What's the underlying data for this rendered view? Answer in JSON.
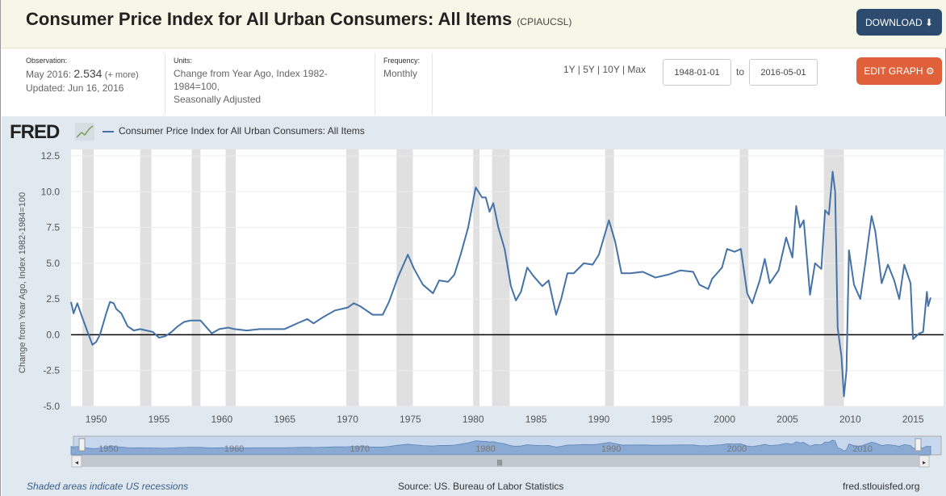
{
  "header": {
    "title": "Consumer Price Index for All Urban Consumers: All Items",
    "series_id": "(CPIAUCSL)",
    "download_label": "DOWNLOAD",
    "edit_label": "EDIT GRAPH"
  },
  "meta": {
    "observation_label": "Observation:",
    "observation_date": "May 2016:",
    "observation_value": "2.534",
    "more": "(+ more)",
    "updated": "Updated: Jun 16, 2016",
    "units_label": "Units:",
    "units_line1": "Change from Year Ago, Index 1982-",
    "units_line2": "1984=100,",
    "units_line3": "Seasonally Adjusted",
    "frequency_label": "Frequency:",
    "frequency": "Monthly"
  },
  "range": {
    "presets": "1Y | 5Y | 10Y | Max",
    "start": "1948-01-01",
    "to": "to",
    "end": "2016-05-01"
  },
  "logo": "FRED",
  "footer": {
    "recessions": "Shaded areas indicate US recessions",
    "source": "Source: US. Bureau of Labor Statistics",
    "site": "fred.stlouisfed.org"
  },
  "colors": {
    "line": "#4572a7",
    "recession": "#e0e0e0",
    "navigator": "#8aaad3"
  },
  "chart_data": {
    "type": "line",
    "legend": "Consumer Price Index for All Urban Consumers: All Items",
    "ylabel": "Change from Year Ago, Index 1982-1984=100",
    "ylim": [
      -5,
      12.5
    ],
    "xlim": [
      1948.0,
      2016.4
    ],
    "yticks": [
      "12.5",
      "10.0",
      "7.5",
      "5.0",
      "2.5",
      "0.0",
      "-2.5",
      "-5.0"
    ],
    "ytick_values": [
      12.5,
      10,
      7.5,
      5,
      2.5,
      0,
      -2.5,
      -5
    ],
    "xticks": [
      "1950",
      "1955",
      "1960",
      "1965",
      "1970",
      "1975",
      "1980",
      "1985",
      "1990",
      "1995",
      "2000",
      "2005",
      "2010",
      "2015"
    ],
    "nav_ticks": [
      "1950",
      "1960",
      "1970",
      "1980",
      "1990",
      "2000",
      "2010"
    ],
    "recessions": [
      [
        1948.9,
        1949.8
      ],
      [
        1953.5,
        1954.4
      ],
      [
        1957.6,
        1958.3
      ],
      [
        1960.3,
        1961.1
      ],
      [
        1969.9,
        1970.9
      ],
      [
        1973.9,
        1975.2
      ],
      [
        1980.0,
        1980.5
      ],
      [
        1981.5,
        1982.9
      ],
      [
        1990.5,
        1991.2
      ],
      [
        2001.2,
        2001.9
      ],
      [
        2007.9,
        2009.5
      ]
    ],
    "series": [
      {
        "name": "CPIAUCSL",
        "points": [
          [
            1948.0,
            2.3
          ],
          [
            1948.2,
            1.5
          ],
          [
            1948.5,
            2.2
          ],
          [
            1948.9,
            1.2
          ],
          [
            1949.4,
            0.0
          ],
          [
            1949.7,
            -0.7
          ],
          [
            1950.0,
            -0.5
          ],
          [
            1950.3,
            0.0
          ],
          [
            1950.8,
            1.5
          ],
          [
            1951.1,
            2.3
          ],
          [
            1951.4,
            2.2
          ],
          [
            1951.6,
            1.8
          ],
          [
            1952.0,
            1.5
          ],
          [
            1952.5,
            0.6
          ],
          [
            1953.0,
            0.3
          ],
          [
            1953.5,
            0.4
          ],
          [
            1954.0,
            0.3
          ],
          [
            1954.5,
            0.2
          ],
          [
            1955.0,
            -0.2
          ],
          [
            1955.5,
            -0.1
          ],
          [
            1956.0,
            0.2
          ],
          [
            1956.5,
            0.6
          ],
          [
            1957.0,
            0.9
          ],
          [
            1957.5,
            1.0
          ],
          [
            1958.0,
            1.0
          ],
          [
            1958.3,
            1.0
          ],
          [
            1958.8,
            0.5
          ],
          [
            1959.2,
            0.1
          ],
          [
            1959.8,
            0.4
          ],
          [
            1960.5,
            0.5
          ],
          [
            1961.0,
            0.4
          ],
          [
            1962.0,
            0.3
          ],
          [
            1963.0,
            0.4
          ],
          [
            1964.0,
            0.4
          ],
          [
            1965.0,
            0.4
          ],
          [
            1966.0,
            0.8
          ],
          [
            1966.8,
            1.1
          ],
          [
            1967.3,
            0.8
          ],
          [
            1968.0,
            1.2
          ],
          [
            1969.0,
            1.7
          ],
          [
            1970.0,
            1.9
          ],
          [
            1970.5,
            2.2
          ],
          [
            1971.0,
            2.0
          ],
          [
            1972.0,
            1.4
          ],
          [
            1972.8,
            1.4
          ],
          [
            1973.3,
            2.3
          ],
          [
            1974.0,
            4.0
          ],
          [
            1974.8,
            5.6
          ],
          [
            1975.3,
            4.6
          ],
          [
            1976.0,
            3.5
          ],
          [
            1976.8,
            2.9
          ],
          [
            1977.3,
            3.8
          ],
          [
            1978.0,
            3.7
          ],
          [
            1978.5,
            4.2
          ],
          [
            1979.0,
            5.6
          ],
          [
            1979.6,
            7.5
          ],
          [
            1980.2,
            10.3
          ],
          [
            1980.7,
            9.6
          ],
          [
            1981.0,
            9.6
          ],
          [
            1981.3,
            8.6
          ],
          [
            1981.6,
            9.2
          ],
          [
            1982.0,
            7.5
          ],
          [
            1982.5,
            6.0
          ],
          [
            1983.0,
            3.4
          ],
          [
            1983.4,
            2.4
          ],
          [
            1983.8,
            3.0
          ],
          [
            1984.3,
            4.7
          ],
          [
            1984.8,
            4.1
          ],
          [
            1985.5,
            3.4
          ],
          [
            1986.0,
            3.8
          ],
          [
            1986.6,
            1.4
          ],
          [
            1987.0,
            2.5
          ],
          [
            1987.5,
            4.3
          ],
          [
            1988.0,
            4.3
          ],
          [
            1988.8,
            5.0
          ],
          [
            1989.5,
            4.9
          ],
          [
            1990.0,
            5.6
          ],
          [
            1990.8,
            8.0
          ],
          [
            1991.3,
            6.5
          ],
          [
            1991.8,
            4.3
          ],
          [
            1992.5,
            4.3
          ],
          [
            1993.5,
            4.4
          ],
          [
            1994.5,
            4.0
          ],
          [
            1995.5,
            4.2
          ],
          [
            1996.5,
            4.5
          ],
          [
            1997.5,
            4.4
          ],
          [
            1998.0,
            3.5
          ],
          [
            1998.7,
            3.2
          ],
          [
            1999.0,
            3.9
          ],
          [
            1999.8,
            4.7
          ],
          [
            2000.2,
            6.0
          ],
          [
            2000.8,
            5.8
          ],
          [
            2001.3,
            6.0
          ],
          [
            2001.8,
            2.9
          ],
          [
            2002.2,
            2.2
          ],
          [
            2002.8,
            3.8
          ],
          [
            2003.2,
            5.3
          ],
          [
            2003.6,
            3.6
          ],
          [
            2004.3,
            4.5
          ],
          [
            2004.9,
            6.8
          ],
          [
            2005.4,
            5.4
          ],
          [
            2005.7,
            9.0
          ],
          [
            2006.0,
            7.5
          ],
          [
            2006.3,
            8.0
          ],
          [
            2006.8,
            2.8
          ],
          [
            2007.2,
            5.0
          ],
          [
            2007.7,
            4.6
          ],
          [
            2008.0,
            8.7
          ],
          [
            2008.3,
            8.4
          ],
          [
            2008.6,
            11.4
          ],
          [
            2008.8,
            10.0
          ],
          [
            2009.0,
            0.5
          ],
          [
            2009.3,
            -1.5
          ],
          [
            2009.5,
            -4.3
          ],
          [
            2009.7,
            -2.5
          ],
          [
            2009.9,
            5.9
          ],
          [
            2010.3,
            3.5
          ],
          [
            2010.8,
            2.5
          ],
          [
            2011.2,
            5.0
          ],
          [
            2011.7,
            8.3
          ],
          [
            2012.0,
            7.2
          ],
          [
            2012.5,
            3.6
          ],
          [
            2013.0,
            4.9
          ],
          [
            2013.5,
            3.8
          ],
          [
            2013.9,
            2.5
          ],
          [
            2014.3,
            4.9
          ],
          [
            2014.8,
            3.6
          ],
          [
            2015.0,
            -0.3
          ],
          [
            2015.5,
            0.1
          ],
          [
            2015.8,
            0.2
          ],
          [
            2016.1,
            3.0
          ],
          [
            2016.2,
            2.0
          ],
          [
            2016.4,
            2.6
          ]
        ]
      }
    ]
  }
}
